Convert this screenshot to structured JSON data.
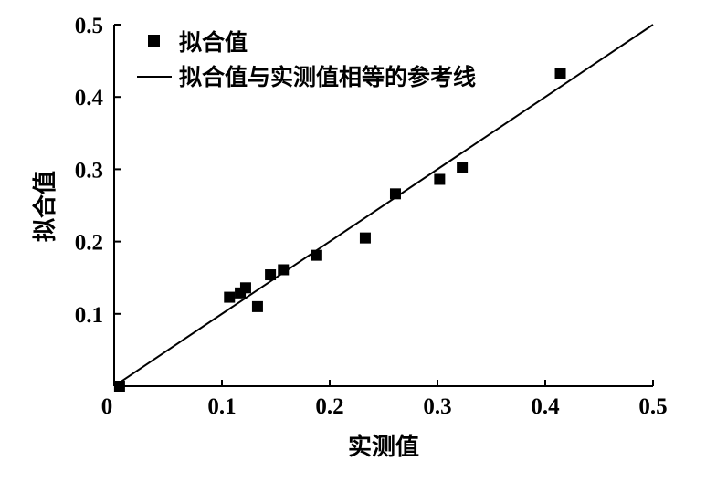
{
  "chart_data": {
    "type": "scatter",
    "xlabel": "实测值",
    "ylabel": "拟合值",
    "xlim": [
      0,
      0.5
    ],
    "ylim": [
      0,
      0.5
    ],
    "x_ticks": [
      "0",
      "0.1",
      "0.2",
      "0.3",
      "0.4",
      "0.5"
    ],
    "y_ticks": [
      "0.1",
      "0.2",
      "0.3",
      "0.4",
      "0.5"
    ],
    "legend_position": "top-left",
    "series": [
      {
        "name": "拟合值",
        "marker": "square",
        "color": "#000000",
        "points": [
          {
            "x": 0.005,
            "y": 0.0
          },
          {
            "x": 0.107,
            "y": 0.123
          },
          {
            "x": 0.117,
            "y": 0.129
          },
          {
            "x": 0.122,
            "y": 0.136
          },
          {
            "x": 0.133,
            "y": 0.11
          },
          {
            "x": 0.145,
            "y": 0.154
          },
          {
            "x": 0.157,
            "y": 0.161
          },
          {
            "x": 0.188,
            "y": 0.181
          },
          {
            "x": 0.233,
            "y": 0.205
          },
          {
            "x": 0.261,
            "y": 0.266
          },
          {
            "x": 0.302,
            "y": 0.286
          },
          {
            "x": 0.323,
            "y": 0.302
          },
          {
            "x": 0.414,
            "y": 0.432
          }
        ]
      },
      {
        "name": "拟合值与实测值相等的参考线",
        "type": "line",
        "color": "#000000",
        "points": [
          {
            "x": 0,
            "y": 0
          },
          {
            "x": 0.5,
            "y": 0.5
          }
        ]
      }
    ]
  }
}
